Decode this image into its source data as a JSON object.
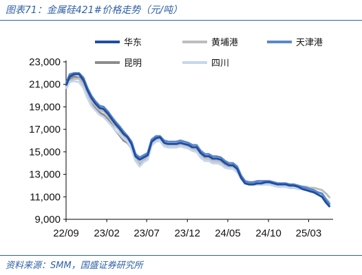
{
  "header": {
    "title": "图表71：金属硅421#价格走势（元/吨）"
  },
  "footer": {
    "source": "资料来源：SMM，国盛证券研究所"
  },
  "chart_data": {
    "type": "line",
    "title": "图表71：金属硅421#价格走势（元/吨）",
    "unit": "元/吨",
    "xlabel": "",
    "ylabel": "",
    "ylim": [
      9000,
      23000
    ],
    "yticks": [
      9000,
      11000,
      13000,
      15000,
      17000,
      19000,
      21000,
      23000
    ],
    "ytick_labels": [
      "9,000",
      "11,000",
      "13,000",
      "15,000",
      "17,000",
      "19,000",
      "21,000",
      "23,000"
    ],
    "xlim": [
      "2022-09",
      "2025-06"
    ],
    "xticks": [
      "2022-09",
      "2023-02",
      "2023-07",
      "2023-12",
      "2024-05",
      "2024-10",
      "2025-03"
    ],
    "xtick_labels": [
      "22/09",
      "23/02",
      "23/07",
      "23/12",
      "24/05",
      "24/10",
      "25/03"
    ],
    "legend_position": "top, two rows",
    "grid": false,
    "series": [
      {
        "name": "华东",
        "color": "#1f4ea3",
        "x": [
          "2022-09-01",
          "2022-09-15",
          "2022-10-01",
          "2022-10-20",
          "2022-11-05",
          "2022-11-20",
          "2022-12-05",
          "2022-12-20",
          "2023-01-05",
          "2023-01-20",
          "2023-02-05",
          "2023-02-20",
          "2023-03-05",
          "2023-03-20",
          "2023-04-05",
          "2023-04-20",
          "2023-05-05",
          "2023-05-20",
          "2023-06-05",
          "2023-06-20",
          "2023-07-05",
          "2023-07-20",
          "2023-08-05",
          "2023-08-20",
          "2023-09-05",
          "2023-09-20",
          "2023-10-05",
          "2023-10-20",
          "2023-11-05",
          "2023-11-20",
          "2023-12-05",
          "2023-12-20",
          "2024-01-05",
          "2024-01-20",
          "2024-02-05",
          "2024-02-20",
          "2024-03-05",
          "2024-03-20",
          "2024-04-05",
          "2024-04-20",
          "2024-05-05",
          "2024-05-20",
          "2024-06-05",
          "2024-06-20",
          "2024-07-05",
          "2024-07-20",
          "2024-08-05",
          "2024-08-20",
          "2024-09-05",
          "2024-09-20",
          "2024-10-05",
          "2024-10-20",
          "2024-11-05",
          "2024-11-20",
          "2024-12-05",
          "2024-12-20",
          "2025-01-05",
          "2025-01-20",
          "2025-02-05",
          "2025-02-20",
          "2025-03-05",
          "2025-03-20",
          "2025-04-05",
          "2025-04-20",
          "2025-05-05",
          "2025-05-20"
        ],
        "y": [
          20900,
          21700,
          21900,
          21900,
          21400,
          20500,
          19800,
          19300,
          18900,
          18800,
          18400,
          17900,
          17500,
          17100,
          16600,
          16300,
          15700,
          14600,
          14300,
          14500,
          14700,
          15900,
          16200,
          16300,
          15800,
          15700,
          15700,
          15700,
          15800,
          15700,
          15600,
          15400,
          15400,
          14900,
          14600,
          14600,
          14400,
          14400,
          14300,
          14000,
          13800,
          13800,
          13500,
          12700,
          12200,
          12100,
          12100,
          12200,
          12200,
          12300,
          12300,
          12200,
          12100,
          12100,
          12100,
          12000,
          12000,
          11900,
          11700,
          11600,
          11500,
          11400,
          11200,
          11000,
          10500,
          10100
        ]
      },
      {
        "name": "黄埔港",
        "color": "#bdbdbd",
        "x": [
          "2022-09-01",
          "2022-09-15",
          "2022-10-01",
          "2022-10-20",
          "2022-11-05",
          "2022-11-20",
          "2022-12-05",
          "2022-12-20",
          "2023-01-05",
          "2023-01-20",
          "2023-02-05",
          "2023-02-20",
          "2023-03-05",
          "2023-03-20",
          "2023-04-05",
          "2023-04-20",
          "2023-05-05",
          "2023-05-20",
          "2023-06-05",
          "2023-06-20",
          "2023-07-05",
          "2023-07-20",
          "2023-08-05",
          "2023-08-20",
          "2023-09-05",
          "2023-09-20",
          "2023-10-05",
          "2023-10-20",
          "2023-11-05",
          "2023-11-20",
          "2023-12-05",
          "2023-12-20",
          "2024-01-05",
          "2024-01-20",
          "2024-02-05",
          "2024-02-20",
          "2024-03-05",
          "2024-03-20",
          "2024-04-05",
          "2024-04-20",
          "2024-05-05",
          "2024-05-20",
          "2024-06-05",
          "2024-06-20",
          "2024-07-05",
          "2024-07-20",
          "2024-08-05",
          "2024-08-20",
          "2024-09-05",
          "2024-09-20",
          "2024-10-05",
          "2024-10-20",
          "2024-11-05",
          "2024-11-20",
          "2024-12-05",
          "2024-12-20",
          "2025-01-05",
          "2025-01-20",
          "2025-02-05",
          "2025-02-20",
          "2025-03-05",
          "2025-03-20",
          "2025-04-05",
          "2025-04-20",
          "2025-05-05",
          "2025-05-20"
        ],
        "y": [
          20700,
          21300,
          21500,
          21500,
          21000,
          20200,
          19500,
          19100,
          18700,
          18600,
          18200,
          17700,
          17300,
          16900,
          16400,
          16100,
          15500,
          14400,
          14000,
          14300,
          14500,
          15700,
          16000,
          16100,
          15600,
          15500,
          15500,
          15500,
          15600,
          15500,
          15400,
          15200,
          15200,
          14700,
          14400,
          14400,
          14200,
          14200,
          14100,
          13800,
          13600,
          13600,
          13300,
          12600,
          12200,
          12200,
          12200,
          12200,
          12200,
          12200,
          12200,
          12200,
          12200,
          12200,
          12200,
          12100,
          12100,
          12000,
          11900,
          11900,
          11800,
          11800,
          11700,
          11600,
          11300,
          10900
        ]
      },
      {
        "name": "天津港",
        "color": "#5b87c8",
        "x": [
          "2022-09-01",
          "2022-09-15",
          "2022-10-01",
          "2022-10-20",
          "2022-11-05",
          "2022-11-20",
          "2022-12-05",
          "2022-12-20",
          "2023-01-05",
          "2023-01-20",
          "2023-02-05",
          "2023-02-20",
          "2023-03-05",
          "2023-03-20",
          "2023-04-05",
          "2023-04-20",
          "2023-05-05",
          "2023-05-20",
          "2023-06-05",
          "2023-06-20",
          "2023-07-05",
          "2023-07-20",
          "2023-08-05",
          "2023-08-20",
          "2023-09-05",
          "2023-09-20",
          "2023-10-05",
          "2023-10-20",
          "2023-11-05",
          "2023-11-20",
          "2023-12-05",
          "2023-12-20",
          "2024-01-05",
          "2024-01-20",
          "2024-02-05",
          "2024-02-20",
          "2024-03-05",
          "2024-03-20",
          "2024-04-05",
          "2024-04-20",
          "2024-05-05",
          "2024-05-20",
          "2024-06-05",
          "2024-06-20",
          "2024-07-05",
          "2024-07-20",
          "2024-08-05",
          "2024-08-20",
          "2024-09-05",
          "2024-09-20",
          "2024-10-05",
          "2024-10-20",
          "2024-11-05",
          "2024-11-20",
          "2024-12-05",
          "2024-12-20",
          "2025-01-05",
          "2025-01-20",
          "2025-02-05",
          "2025-02-20",
          "2025-03-05",
          "2025-03-20",
          "2025-04-05",
          "2025-04-20",
          "2025-05-05",
          "2025-05-20"
        ],
        "y": [
          21100,
          21900,
          22000,
          22000,
          21600,
          20700,
          20000,
          19500,
          19100,
          19000,
          18600,
          18100,
          17700,
          17300,
          16800,
          16400,
          15900,
          14800,
          14500,
          14700,
          14900,
          16100,
          16400,
          16400,
          16000,
          15900,
          15900,
          15900,
          16000,
          15900,
          15800,
          15600,
          15600,
          15100,
          14800,
          14800,
          14600,
          14600,
          14500,
          14200,
          14000,
          14000,
          13700,
          12900,
          12400,
          12300,
          12300,
          12400,
          12400,
          12400,
          12400,
          12300,
          12200,
          12200,
          12200,
          12100,
          12100,
          12000,
          11900,
          11800,
          11700,
          11600,
          11400,
          11300,
          10800,
          10300
        ]
      },
      {
        "name": "昆明",
        "color": "#8c8c8c",
        "x": [
          "2022-09-01",
          "2022-09-15",
          "2022-10-01",
          "2022-10-20",
          "2022-11-05",
          "2022-11-20",
          "2022-12-05",
          "2022-12-20",
          "2023-01-05",
          "2023-01-20",
          "2023-02-05",
          "2023-02-20",
          "2023-03-05",
          "2023-03-20",
          "2023-04-05",
          "2023-04-20",
          "2023-05-05",
          "2023-05-20",
          "2023-06-05",
          "2023-06-20",
          "2023-07-05",
          "2023-07-20",
          "2023-08-05",
          "2023-08-20",
          "2023-09-05",
          "2023-09-20",
          "2023-10-05",
          "2023-10-20",
          "2023-11-05",
          "2023-11-20",
          "2023-12-05",
          "2023-12-20",
          "2024-01-05",
          "2024-01-20",
          "2024-02-05",
          "2024-02-20",
          "2024-03-05",
          "2024-03-20",
          "2024-04-05",
          "2024-04-20",
          "2024-05-05",
          "2024-05-20",
          "2024-06-05",
          "2024-06-20",
          "2024-07-05",
          "2024-07-20",
          "2024-08-05",
          "2024-08-20",
          "2024-09-05",
          "2024-09-20",
          "2024-10-05",
          "2024-10-20",
          "2024-11-05",
          "2024-11-20",
          "2024-12-05",
          "2024-12-20",
          "2025-01-05",
          "2025-01-20",
          "2025-02-05",
          "2025-02-20",
          "2025-03-05",
          "2025-03-20",
          "2025-04-05",
          "2025-04-20",
          "2025-05-05",
          "2025-05-20"
        ],
        "y": [
          20800,
          21500,
          21700,
          21600,
          21100,
          20200,
          19500,
          18900,
          18500,
          18300,
          17900,
          17400,
          16900,
          16500,
          16000,
          15800,
          15300,
          14200,
          13900,
          14200,
          14400,
          15600,
          15900,
          16000,
          15500,
          15400,
          15400,
          15400,
          15500,
          15400,
          15300,
          15100,
          15000,
          14500,
          14200,
          14200,
          14000,
          14000,
          13900,
          13700,
          13600,
          13600,
          13300,
          12700,
          12200,
          12100,
          12100,
          12100,
          12100,
          12100,
          12100,
          12000,
          11900,
          11900,
          11900,
          11800,
          11800,
          11700,
          11700,
          11600,
          11500,
          11400,
          11300,
          11200,
          10800,
          10500
        ]
      },
      {
        "name": "四川",
        "color": "#c5d6ef",
        "x": [
          "2022-09-01",
          "2022-09-15",
          "2022-10-01",
          "2022-10-20",
          "2022-11-05",
          "2022-11-20",
          "2022-12-05",
          "2022-12-20",
          "2023-01-05",
          "2023-01-20",
          "2023-02-05",
          "2023-02-20",
          "2023-03-05",
          "2023-03-20",
          "2023-04-05",
          "2023-04-20",
          "2023-05-05",
          "2023-05-20",
          "2023-06-05",
          "2023-06-20",
          "2023-07-05",
          "2023-07-20",
          "2023-08-05",
          "2023-08-20",
          "2023-09-05",
          "2023-09-20",
          "2023-10-05",
          "2023-10-20",
          "2023-11-05",
          "2023-11-20",
          "2023-12-05",
          "2023-12-20",
          "2024-01-05",
          "2024-01-20",
          "2024-02-05",
          "2024-02-20",
          "2024-03-05",
          "2024-03-20",
          "2024-04-05",
          "2024-04-20",
          "2024-05-05",
          "2024-05-20",
          "2024-06-05",
          "2024-06-20",
          "2024-07-05",
          "2024-07-20",
          "2024-08-05",
          "2024-08-20",
          "2024-09-05",
          "2024-09-20",
          "2024-10-05",
          "2024-10-20",
          "2024-11-05",
          "2024-11-20",
          "2024-12-05",
          "2024-12-20",
          "2025-01-05",
          "2025-01-20",
          "2025-02-05",
          "2025-02-20",
          "2025-03-05",
          "2025-03-20",
          "2025-04-05",
          "2025-04-20",
          "2025-05-05",
          "2025-05-20"
        ],
        "y": [
          20600,
          21200,
          21300,
          21200,
          20700,
          19800,
          19100,
          18700,
          18300,
          18100,
          17700,
          17300,
          16900,
          16600,
          16200,
          15900,
          15300,
          14200,
          13700,
          14100,
          14300,
          15600,
          15900,
          16000,
          15500,
          15400,
          15400,
          15400,
          15500,
          15400,
          15300,
          15100,
          15000,
          14500,
          14200,
          14200,
          14000,
          14000,
          13900,
          13600,
          13500,
          13500,
          13200,
          12600,
          12200,
          12100,
          12100,
          12100,
          12100,
          12100,
          12100,
          12000,
          11900,
          11900,
          11900,
          11800,
          11800,
          11700,
          11700,
          11600,
          11500,
          11400,
          11300,
          11200,
          10800,
          10500
        ]
      }
    ]
  }
}
